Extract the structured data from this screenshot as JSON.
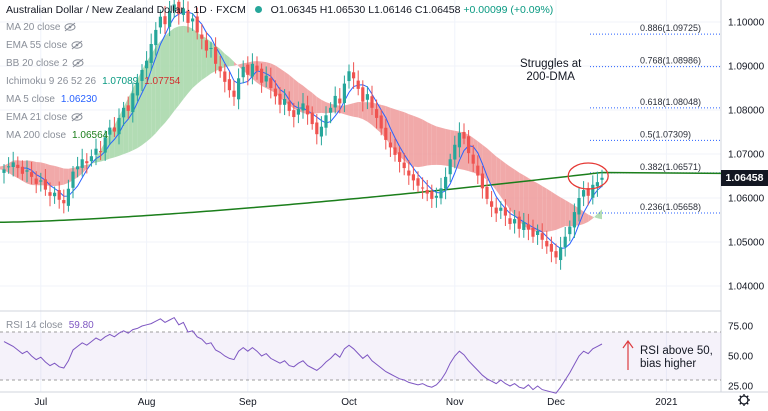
{
  "header": {
    "symbol": "Australian Dollar / New Zealand Dollar · 1D · FXCM",
    "open": "O1.06345",
    "high": "H1.06530",
    "low": "L1.06146",
    "close": "C1.06458",
    "change": "+0.00099 (+0.09%)"
  },
  "indicators": [
    {
      "label": "MA 20 close",
      "value": "",
      "hidden": true
    },
    {
      "label": "EMA 55 close",
      "value": "",
      "hidden": true
    },
    {
      "label": "BB 20 close 2",
      "value": "",
      "hidden": true
    },
    {
      "label": "Ichimoku 9 26 52 26",
      "value": "1.07089",
      "value2": "1.07754",
      "hidden": false
    },
    {
      "label": "MA 5 close",
      "value": "1.06230",
      "hidden": false
    },
    {
      "label": "EMA 21 close",
      "value": "",
      "hidden": true
    },
    {
      "label": "MA 200 close",
      "value": "1.06564",
      "hidden": false
    }
  ],
  "colors": {
    "up": "#26a69a",
    "down": "#ef5350",
    "ma200": "#1b7e1b",
    "ma5": "#2962ff",
    "kumo_bull": "#a5d6a7",
    "kumo_bear": "#ef9a9a",
    "rsi": "#7e57c2",
    "value_ma5": "#2962ff",
    "value_ich1": "#089981",
    "value_ich2": "#d32f2f",
    "value_ma200": "#1b7e1b"
  },
  "annotations": {
    "dma": "Struggles at\n200-DMA",
    "rsi": "RSI above 50,\nbias higher"
  },
  "rsi": {
    "label": "RSI 14 close",
    "value": "59.80"
  },
  "last_price": "1.06458",
  "chart_data": {
    "type": "candlestick",
    "price_axis": {
      "min": 1.035,
      "max": 1.105,
      "ticks": [
        "1.10000",
        "1.09000",
        "1.08000",
        "1.07000",
        "1.06000",
        "1.05000",
        "1.04000"
      ],
      "tick_values": [
        1.1,
        1.09,
        1.08,
        1.07,
        1.06,
        1.05,
        1.04
      ]
    },
    "time_axis": {
      "labels": [
        "Jul",
        "Aug",
        "Sep",
        "Oct",
        "Nov",
        "Dec",
        "2021"
      ],
      "label_index": [
        8,
        31,
        53,
        75,
        98,
        120,
        144
      ]
    },
    "fibonacci": [
      {
        "label": "0.886(1.09725)",
        "value": 1.09725
      },
      {
        "label": "0.768(1.08986)",
        "value": 1.08986
      },
      {
        "label": "0.618(1.08048)",
        "value": 1.08048
      },
      {
        "label": "0.5(1.07309)",
        "value": 1.07309
      },
      {
        "label": "0.382(1.06571)",
        "value": 1.06571
      },
      {
        "label": "0.236(1.05658)",
        "value": 1.05658
      }
    ],
    "closes": [
      1.0665,
      1.0672,
      1.0681,
      1.0668,
      1.0655,
      1.0663,
      1.0648,
      1.0632,
      1.064,
      1.0619,
      1.0605,
      1.0612,
      1.0596,
      1.0588,
      1.0621,
      1.066,
      1.0672,
      1.0688,
      1.0679,
      1.0695,
      1.0712,
      1.0705,
      1.0738,
      1.076,
      1.0751,
      1.0782,
      1.0805,
      1.0798,
      1.0838,
      1.0862,
      1.0891,
      1.0912,
      1.095,
      1.0982,
      1.1012,
      1.0995,
      1.1025,
      1.104,
      1.1018,
      1.1031,
      1.0998,
      1.1008,
      1.0976,
      1.0962,
      1.0935,
      1.0941,
      1.0905,
      1.0888,
      1.0864,
      1.0845,
      1.083,
      1.0872,
      1.0898,
      1.088,
      1.0905,
      1.0889,
      1.0862,
      1.0878,
      1.085,
      1.0831,
      1.0812,
      1.0825,
      1.0798,
      1.0784,
      1.0802,
      1.0815,
      1.079,
      1.0768,
      1.0745,
      1.0762,
      1.0788,
      1.0805,
      1.0832,
      1.0815,
      1.086,
      1.0888,
      1.0872,
      1.0848,
      1.0819,
      1.0836,
      1.0805,
      1.0782,
      1.0758,
      1.0732,
      1.0715,
      1.0698,
      1.0682,
      1.0668,
      1.0651,
      1.064,
      1.0628,
      1.0622,
      1.061,
      1.0598,
      1.0605,
      1.0622,
      1.0648,
      1.0688,
      1.0721,
      1.0748,
      1.0735,
      1.0702,
      1.0678,
      1.0651,
      1.0622,
      1.0598,
      1.058,
      1.0565,
      1.0578,
      1.056,
      1.0541,
      1.0552,
      1.053,
      1.0545,
      1.0528,
      1.0512,
      1.0525,
      1.0505,
      1.049,
      1.0478,
      1.0465,
      1.0488,
      1.0512,
      1.0535,
      1.0568,
      1.06,
      1.0618,
      1.0605,
      1.063,
      1.0636,
      1.0646
    ],
    "rsi_axis": {
      "min": 20,
      "max": 85,
      "ticks": [
        "75.00",
        "50.00",
        "25.00"
      ],
      "tick_values": [
        75,
        50,
        25
      ]
    },
    "rsi_values": [
      62,
      60,
      58,
      55,
      52,
      54,
      50,
      47,
      49,
      45,
      42,
      44,
      41,
      40,
      46,
      55,
      58,
      61,
      59,
      62,
      65,
      63,
      66,
      68,
      66,
      69,
      71,
      69,
      72,
      73,
      75,
      76,
      77,
      79,
      81,
      78,
      80,
      82,
      76,
      78,
      70,
      71,
      66,
      64,
      60,
      61,
      55,
      53,
      50,
      48,
      47,
      54,
      57,
      54,
      57,
      54,
      50,
      52,
      48,
      46,
      44,
      46,
      42,
      41,
      44,
      46,
      42,
      40,
      38,
      41,
      45,
      48,
      52,
      49,
      56,
      59,
      56,
      52,
      48,
      51,
      46,
      43,
      40,
      37,
      35,
      33,
      31,
      30,
      28,
      27,
      26,
      27,
      25,
      24,
      26,
      30,
      36,
      44,
      50,
      54,
      51,
      46,
      42,
      38,
      34,
      31,
      29,
      27,
      30,
      27,
      25,
      27,
      24,
      23,
      26,
      22,
      25,
      22,
      21,
      20,
      19,
      24,
      30,
      36,
      43,
      50,
      54,
      52,
      56,
      58,
      60
    ],
    "rsi_title": "RSI 14 close"
  }
}
